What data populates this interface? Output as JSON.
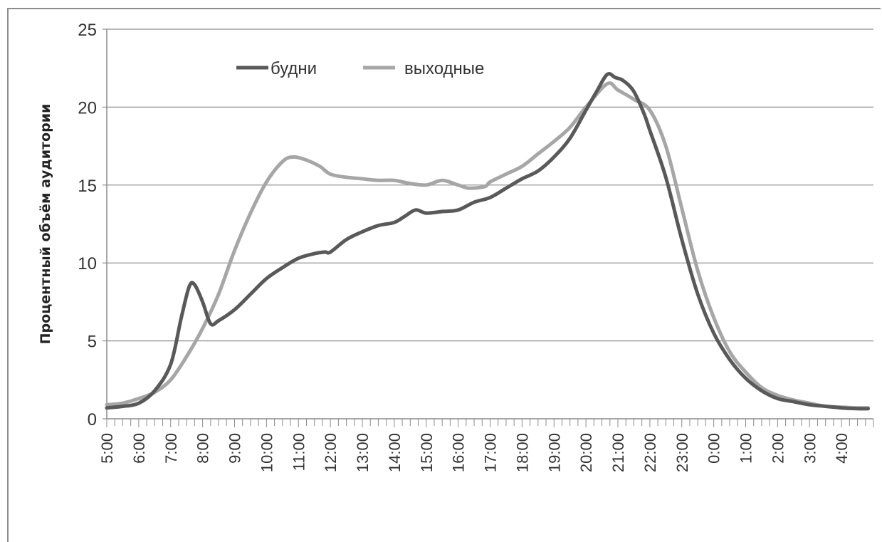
{
  "chart_data": {
    "type": "line",
    "ylabel": "Процентный объём аудитории",
    "ylim": [
      0,
      25
    ],
    "yticks": [
      0,
      5,
      10,
      15,
      20,
      25
    ],
    "xlim": [
      5,
      29
    ],
    "xticks": [
      "5:00",
      "6:00",
      "7:00",
      "8:00",
      "9:00",
      "10:00",
      "11:00",
      "12:00",
      "13:00",
      "14:00",
      "15:00",
      "16:00",
      "17:00",
      "18:00",
      "19:00",
      "20:00",
      "21:00",
      "22:00",
      "23:00",
      "0:00",
      "1:00",
      "2:00",
      "3:00",
      "4:00"
    ],
    "grid": true,
    "legend": "top-left",
    "series": [
      {
        "name": "будни",
        "color": "#595959",
        "x": [
          "5:00",
          "5:30",
          "6:00",
          "6:30",
          "7:00",
          "7:20",
          "7:35",
          "7:45",
          "8:00",
          "8:15",
          "8:30",
          "9:00",
          "9:30",
          "10:00",
          "10:30",
          "11:00",
          "11:30",
          "11:50",
          "12:00",
          "12:30",
          "13:00",
          "13:30",
          "14:00",
          "14:20",
          "14:40",
          "15:00",
          "15:30",
          "16:00",
          "16:30",
          "17:00",
          "17:30",
          "18:00",
          "18:30",
          "19:00",
          "19:30",
          "20:00",
          "20:20",
          "20:40",
          "20:55",
          "21:10",
          "21:30",
          "21:50",
          "22:00",
          "22:30",
          "23:00",
          "23:30",
          "0:00",
          "0:30",
          "1:00",
          "1:30",
          "2:00",
          "2:30",
          "3:00",
          "3:30",
          "4:00",
          "4:30",
          "4:50"
        ],
        "y": [
          0.7,
          0.8,
          1.0,
          1.8,
          3.5,
          6.5,
          8.5,
          8.6,
          7.5,
          6.1,
          6.3,
          7.0,
          8.0,
          9.0,
          9.7,
          10.3,
          10.6,
          10.7,
          10.7,
          11.5,
          12.0,
          12.4,
          12.6,
          13.0,
          13.4,
          13.2,
          13.3,
          13.4,
          13.9,
          14.2,
          14.8,
          15.4,
          15.9,
          16.8,
          18.0,
          19.8,
          21.0,
          22.1,
          21.9,
          21.7,
          21.0,
          19.5,
          18.5,
          15.5,
          11.5,
          8.0,
          5.5,
          3.8,
          2.6,
          1.8,
          1.3,
          1.1,
          0.9,
          0.8,
          0.7,
          0.65,
          0.65
        ]
      },
      {
        "name": "выходные",
        "color": "#a6a6a6",
        "x": [
          "5:00",
          "5:30",
          "6:00",
          "6:30",
          "7:00",
          "7:30",
          "8:00",
          "8:30",
          "9:00",
          "9:30",
          "10:00",
          "10:30",
          "10:50",
          "11:15",
          "11:40",
          "12:00",
          "12:30",
          "13:00",
          "13:30",
          "14:00",
          "14:30",
          "15:00",
          "15:30",
          "16:00",
          "16:20",
          "16:50",
          "17:00",
          "17:30",
          "18:00",
          "18:30",
          "19:00",
          "19:30",
          "20:00",
          "20:40",
          "21:00",
          "21:30",
          "22:00",
          "22:30",
          "23:00",
          "23:30",
          "0:00",
          "0:30",
          "1:00",
          "1:30",
          "2:00",
          "2:30",
          "3:00",
          "3:30",
          "4:00",
          "4:30",
          "4:50"
        ],
        "y": [
          0.9,
          1.0,
          1.3,
          1.7,
          2.5,
          4.0,
          5.8,
          8.0,
          10.8,
          13.2,
          15.2,
          16.5,
          16.8,
          16.6,
          16.2,
          15.7,
          15.5,
          15.4,
          15.3,
          15.3,
          15.1,
          15.0,
          15.3,
          15.0,
          14.8,
          14.9,
          15.2,
          15.7,
          16.2,
          17.0,
          17.8,
          18.7,
          20.0,
          21.5,
          21.1,
          20.5,
          19.8,
          17.5,
          13.5,
          9.5,
          6.5,
          4.3,
          3.0,
          2.0,
          1.5,
          1.2,
          1.0,
          0.8,
          0.75,
          0.7,
          0.7
        ]
      }
    ]
  }
}
